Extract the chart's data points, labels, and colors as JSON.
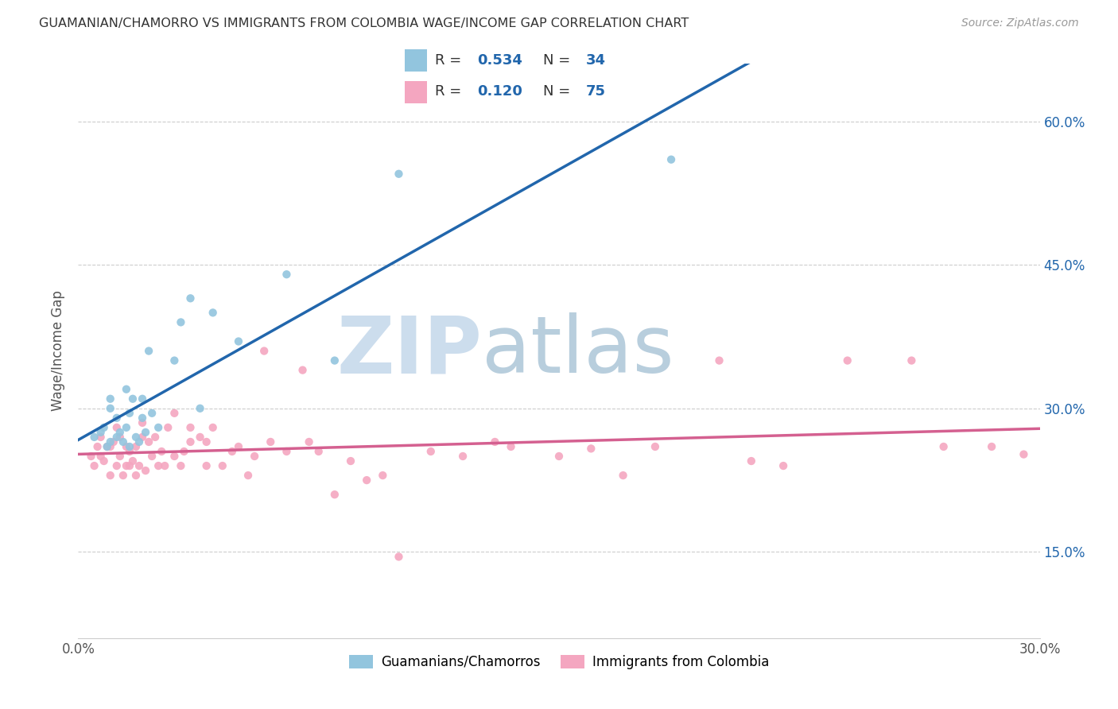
{
  "title": "GUAMANIAN/CHAMORRO VS IMMIGRANTS FROM COLOMBIA WAGE/INCOME GAP CORRELATION CHART",
  "source": "Source: ZipAtlas.com",
  "ylabel": "Wage/Income Gap",
  "xmin": 0.0,
  "xmax": 0.3,
  "ymin": 0.06,
  "ymax": 0.66,
  "xtick_positions": [
    0.0,
    0.05,
    0.1,
    0.15,
    0.2,
    0.25,
    0.3
  ],
  "xtick_labels": [
    "0.0%",
    "",
    "",
    "",
    "",
    "",
    "30.0%"
  ],
  "ytick_positions": [
    0.15,
    0.3,
    0.45,
    0.6
  ],
  "ytick_labels": [
    "15.0%",
    "30.0%",
    "45.0%",
    "60.0%"
  ],
  "blue_color": "#92c5de",
  "pink_color": "#f4a6c0",
  "blue_line_color": "#2166ac",
  "pink_line_color": "#d46090",
  "legend_R1": "0.534",
  "legend_N1": "34",
  "legend_R2": "0.120",
  "legend_N2": "75",
  "legend_text_color": "#333333",
  "legend_val_color": "#2166ac",
  "watermark_zip": "ZIP",
  "watermark_atlas": "atlas",
  "watermark_color": "#ccdded",
  "blue_scatter_x": [
    0.005,
    0.007,
    0.008,
    0.009,
    0.01,
    0.01,
    0.01,
    0.012,
    0.012,
    0.013,
    0.014,
    0.015,
    0.015,
    0.016,
    0.016,
    0.017,
    0.018,
    0.019,
    0.02,
    0.02,
    0.021,
    0.022,
    0.023,
    0.025,
    0.03,
    0.032,
    0.035,
    0.038,
    0.042,
    0.05,
    0.065,
    0.08,
    0.1,
    0.185
  ],
  "blue_scatter_y": [
    0.27,
    0.275,
    0.28,
    0.26,
    0.265,
    0.3,
    0.31,
    0.27,
    0.29,
    0.275,
    0.265,
    0.28,
    0.32,
    0.26,
    0.295,
    0.31,
    0.27,
    0.265,
    0.29,
    0.31,
    0.275,
    0.36,
    0.295,
    0.28,
    0.35,
    0.39,
    0.415,
    0.3,
    0.4,
    0.37,
    0.44,
    0.35,
    0.545,
    0.56
  ],
  "pink_scatter_x": [
    0.004,
    0.005,
    0.006,
    0.007,
    0.007,
    0.008,
    0.009,
    0.01,
    0.01,
    0.011,
    0.012,
    0.012,
    0.013,
    0.013,
    0.014,
    0.015,
    0.015,
    0.016,
    0.016,
    0.017,
    0.018,
    0.018,
    0.019,
    0.02,
    0.02,
    0.021,
    0.022,
    0.023,
    0.024,
    0.025,
    0.026,
    0.027,
    0.028,
    0.03,
    0.03,
    0.032,
    0.033,
    0.035,
    0.035,
    0.038,
    0.04,
    0.04,
    0.042,
    0.045,
    0.048,
    0.05,
    0.053,
    0.055,
    0.058,
    0.06,
    0.065,
    0.07,
    0.072,
    0.075,
    0.08,
    0.085,
    0.09,
    0.095,
    0.1,
    0.11,
    0.12,
    0.13,
    0.135,
    0.15,
    0.16,
    0.17,
    0.18,
    0.2,
    0.21,
    0.22,
    0.24,
    0.26,
    0.27,
    0.285,
    0.295
  ],
  "pink_scatter_y": [
    0.25,
    0.24,
    0.26,
    0.25,
    0.27,
    0.245,
    0.26,
    0.23,
    0.26,
    0.265,
    0.24,
    0.28,
    0.25,
    0.27,
    0.23,
    0.24,
    0.26,
    0.24,
    0.255,
    0.245,
    0.23,
    0.26,
    0.24,
    0.27,
    0.285,
    0.235,
    0.265,
    0.25,
    0.27,
    0.24,
    0.255,
    0.24,
    0.28,
    0.25,
    0.295,
    0.24,
    0.255,
    0.265,
    0.28,
    0.27,
    0.24,
    0.265,
    0.28,
    0.24,
    0.255,
    0.26,
    0.23,
    0.25,
    0.36,
    0.265,
    0.255,
    0.34,
    0.265,
    0.255,
    0.21,
    0.245,
    0.225,
    0.23,
    0.145,
    0.255,
    0.25,
    0.265,
    0.26,
    0.25,
    0.258,
    0.23,
    0.26,
    0.35,
    0.245,
    0.24,
    0.35,
    0.35,
    0.26,
    0.26,
    0.252
  ]
}
